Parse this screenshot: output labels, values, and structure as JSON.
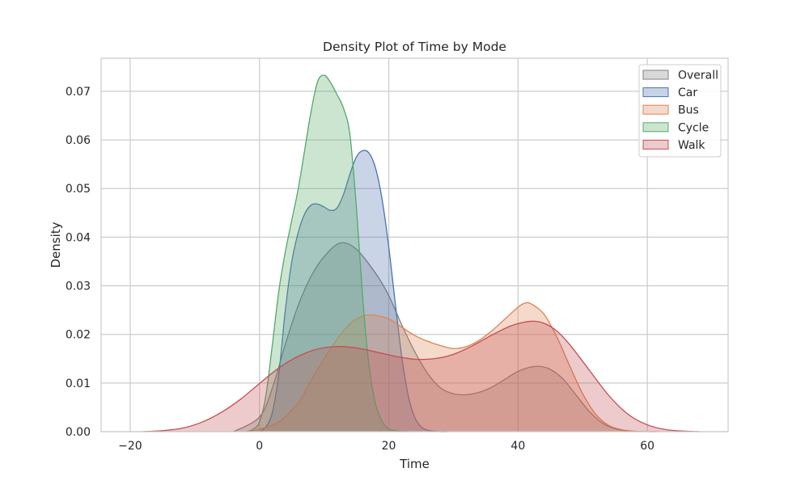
{
  "chart_data": {
    "type": "area",
    "title": "Density Plot of Time by Mode",
    "xlabel": "Time",
    "ylabel": "Density",
    "xlim": [
      -24.5,
      72.5
    ],
    "ylim": [
      0,
      0.0768
    ],
    "xticks": [
      -20,
      0,
      20,
      40,
      60
    ],
    "xtick_labels": [
      "−20",
      "0",
      "20",
      "40",
      "60"
    ],
    "yticks": [
      0.0,
      0.01,
      0.02,
      0.03,
      0.04,
      0.05,
      0.06,
      0.07
    ],
    "ytick_labels": [
      "0.00",
      "0.01",
      "0.02",
      "0.03",
      "0.04",
      "0.05",
      "0.06",
      "0.07"
    ],
    "grid": true,
    "legend_position": "top-right",
    "series": [
      {
        "name": "Overall",
        "color": "#808080",
        "x": [
          -4,
          0,
          2,
          4,
          6,
          8,
          10,
          12.5,
          15,
          18,
          20,
          22,
          24,
          26,
          28,
          30,
          32,
          34,
          36,
          38,
          40,
          42,
          43.5,
          45,
          47,
          49,
          51,
          53,
          55,
          57,
          58
        ],
        "y": [
          0,
          0.003,
          0.009,
          0.018,
          0.026,
          0.032,
          0.036,
          0.0388,
          0.0375,
          0.0325,
          0.028,
          0.022,
          0.0165,
          0.012,
          0.009,
          0.0078,
          0.0076,
          0.0081,
          0.0092,
          0.0108,
          0.0124,
          0.0133,
          0.0134,
          0.0128,
          0.0108,
          0.0075,
          0.0042,
          0.0018,
          0.0006,
          0.0001,
          0
        ]
      },
      {
        "name": "Car",
        "color": "#4c72b0",
        "x": [
          0,
          1,
          2,
          3,
          4,
          5,
          6,
          7,
          8,
          9,
          10,
          11,
          12,
          13,
          14,
          15,
          16,
          17,
          18,
          19,
          20,
          21,
          22,
          23,
          24,
          25,
          26,
          27,
          28,
          29
        ],
        "y": [
          0,
          0.001,
          0.004,
          0.012,
          0.025,
          0.035,
          0.041,
          0.0448,
          0.0466,
          0.0468,
          0.0462,
          0.0455,
          0.046,
          0.0488,
          0.053,
          0.0565,
          0.0578,
          0.0572,
          0.054,
          0.0475,
          0.038,
          0.0265,
          0.0155,
          0.0075,
          0.003,
          0.001,
          0.0003,
          0.0001,
          0,
          0
        ]
      },
      {
        "name": "Bus",
        "color": "#dd8452",
        "x": [
          -2,
          0,
          3,
          6,
          8,
          10,
          12,
          14,
          16,
          17,
          18,
          20,
          22,
          24,
          26,
          28,
          30,
          32,
          34,
          36,
          38,
          40,
          41,
          42,
          44,
          46,
          48,
          50,
          52,
          54,
          56,
          58,
          60,
          62
        ],
        "y": [
          0,
          0.0005,
          0.002,
          0.006,
          0.0105,
          0.015,
          0.019,
          0.0222,
          0.0238,
          0.024,
          0.0239,
          0.0232,
          0.0215,
          0.0198,
          0.0186,
          0.0177,
          0.0171,
          0.0175,
          0.0188,
          0.0208,
          0.0232,
          0.0256,
          0.0264,
          0.0263,
          0.0242,
          0.0195,
          0.0135,
          0.0078,
          0.0036,
          0.0013,
          0.0004,
          0.0001,
          0,
          0
        ]
      },
      {
        "name": "Cycle",
        "color": "#55a868",
        "x": [
          -2,
          -1,
          0,
          1,
          2,
          3,
          4,
          5,
          6,
          7,
          8,
          9,
          10,
          11,
          12,
          13,
          14,
          15,
          16,
          17,
          18,
          19,
          20,
          21,
          22,
          23
        ],
        "y": [
          0,
          0.0005,
          0.002,
          0.0075,
          0.018,
          0.029,
          0.037,
          0.0435,
          0.05,
          0.058,
          0.066,
          0.072,
          0.0733,
          0.0718,
          0.0693,
          0.0665,
          0.061,
          0.046,
          0.027,
          0.013,
          0.0055,
          0.002,
          0.0006,
          0.0002,
          5e-05,
          0
        ]
      },
      {
        "name": "Walk",
        "color": "#c44e52",
        "x": [
          -18,
          -15,
          -12,
          -9,
          -6,
          -3,
          0,
          3,
          6,
          9,
          12,
          15,
          18,
          21,
          24,
          27,
          30,
          33,
          36,
          39,
          42,
          44,
          46,
          48,
          51,
          54,
          57,
          60,
          63,
          66,
          68
        ],
        "y": [
          0,
          0.0002,
          0.0007,
          0.0019,
          0.0039,
          0.0066,
          0.0099,
          0.0131,
          0.0155,
          0.017,
          0.0175,
          0.0172,
          0.0164,
          0.0155,
          0.0149,
          0.015,
          0.0159,
          0.0177,
          0.0199,
          0.0218,
          0.0227,
          0.0223,
          0.0207,
          0.0179,
          0.0127,
          0.0075,
          0.0036,
          0.0014,
          0.0004,
          0.0001,
          0
        ]
      }
    ]
  }
}
